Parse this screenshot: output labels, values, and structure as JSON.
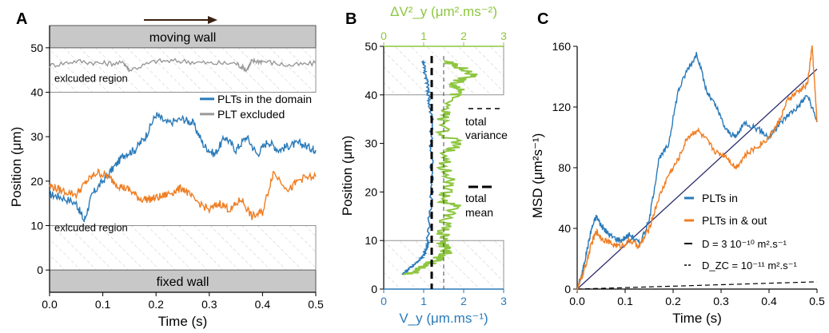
{
  "chart_data": [
    {
      "panel": "A",
      "type": "line",
      "xlabel": "Time (s)",
      "ylabel": "Position (μm)",
      "xlim": [
        0,
        0.5
      ],
      "ylim": [
        -5,
        55
      ],
      "xticks": [
        "0.0",
        "0.1",
        "0.2",
        "0.3",
        "0.4",
        "0.5"
      ],
      "yticks": [
        "0",
        "10",
        "20",
        "30",
        "40",
        "50"
      ],
      "top_band_label": "moving wall",
      "bottom_band_label": "fixed wall",
      "region_labels": [
        "exlcuded region",
        "exlcuded region"
      ],
      "legend_position": "top-right",
      "series": [
        {
          "name": "PLTs in the domain",
          "color": "#2a7ab9",
          "x": [
            0.0,
            0.02,
            0.05,
            0.065,
            0.08,
            0.1,
            0.12,
            0.14,
            0.16,
            0.18,
            0.2,
            0.22,
            0.25,
            0.27,
            0.29,
            0.31,
            0.33,
            0.35,
            0.37,
            0.39,
            0.41,
            0.43,
            0.45,
            0.47,
            0.49,
            0.5
          ],
          "y": [
            17,
            16.5,
            15,
            11,
            17,
            20,
            23,
            26,
            27,
            30,
            35,
            33,
            34,
            33,
            28,
            26,
            30,
            27,
            30,
            26,
            29,
            27,
            28,
            28.5,
            27.5,
            27
          ]
        },
        {
          "name": "PLT excluded",
          "color": "#999999",
          "x": [
            0.0,
            0.05,
            0.1,
            0.14,
            0.15,
            0.2,
            0.25,
            0.3,
            0.35,
            0.37,
            0.38,
            0.4,
            0.45,
            0.5
          ],
          "y": [
            46,
            47,
            46.5,
            46.5,
            45,
            47,
            47,
            46.5,
            46.5,
            45,
            47,
            47,
            46,
            46.5
          ]
        },
        {
          "name": "",
          "color": "#ef7d22",
          "x": [
            0.0,
            0.02,
            0.05,
            0.07,
            0.09,
            0.11,
            0.13,
            0.15,
            0.17,
            0.19,
            0.21,
            0.23,
            0.25,
            0.27,
            0.3,
            0.32,
            0.34,
            0.36,
            0.38,
            0.4,
            0.42,
            0.45,
            0.47,
            0.5
          ],
          "y": [
            19,
            18,
            17,
            20,
            22,
            21,
            19,
            18,
            16,
            16,
            16.5,
            17.5,
            18.5,
            16,
            13.5,
            15,
            13.5,
            16,
            12,
            13,
            22,
            18,
            20.5,
            21
          ]
        }
      ]
    },
    {
      "panel": "B",
      "type": "line",
      "xlabel_bottom": "V_y (μm.ms⁻¹)",
      "xlabel_top": "ΔV²_y (μm².ms⁻²)",
      "ylabel": "Position (μm)",
      "xlim_bottom": [
        0,
        3
      ],
      "xlim_top": [
        0,
        3
      ],
      "ylim": [
        0,
        50
      ],
      "xticks_bottom": [
        "0",
        "1",
        "2",
        "3"
      ],
      "xticks_top": [
        "0",
        "1",
        "2",
        "3"
      ],
      "yticks": [
        "0",
        "10",
        "20",
        "30",
        "40",
        "50"
      ],
      "annotations": [
        "total variance",
        "total mean"
      ],
      "total_mean": 1.2,
      "total_variance": 1.5,
      "series": [
        {
          "name": "V_y",
          "color": "#2a7ab9",
          "y": [
            3,
            4,
            5,
            6,
            7,
            8,
            9,
            10,
            12,
            15,
            20,
            25,
            30,
            35,
            38,
            40,
            42,
            44,
            46,
            47
          ],
          "x": [
            0.5,
            0.6,
            0.75,
            0.9,
            1.0,
            1.05,
            1.1,
            1.1,
            1.12,
            1.15,
            1.2,
            1.2,
            1.18,
            1.2,
            1.15,
            1.12,
            1.1,
            1.05,
            1.0,
            1.0
          ]
        },
        {
          "name": "ΔV²_y",
          "color": "#8dc63f",
          "y": [
            3,
            4,
            5,
            6,
            7,
            8,
            9,
            10,
            12,
            15,
            17,
            18,
            20,
            22,
            25,
            28,
            30,
            32,
            35,
            37,
            40,
            41,
            42,
            43,
            44,
            45,
            46,
            47
          ],
          "x": [
            0.6,
            0.9,
            1.1,
            1.3,
            1.5,
            1.6,
            1.5,
            1.45,
            1.5,
            1.55,
            1.9,
            1.5,
            1.55,
            1.7,
            1.5,
            1.55,
            1.9,
            1.45,
            1.5,
            1.5,
            1.8,
            2.0,
            1.7,
            1.9,
            2.2,
            2.1,
            1.8,
            1.5
          ]
        }
      ]
    },
    {
      "panel": "C",
      "type": "line",
      "xlabel": "Time (s)",
      "ylabel": "MSD (μm²s⁻¹)",
      "xlim": [
        0,
        0.5
      ],
      "ylim": [
        0,
        160
      ],
      "xticks": [
        "0.0",
        "0.1",
        "0.2",
        "0.3",
        "0.4",
        "0.5"
      ],
      "yticks": [
        "0",
        "40",
        "80",
        "120",
        "160"
      ],
      "legend_position": "bottom-right",
      "series": [
        {
          "name": "PLTs in",
          "color": "#2a7ab9",
          "x": [
            0.0,
            0.01,
            0.02,
            0.03,
            0.04,
            0.05,
            0.06,
            0.07,
            0.09,
            0.11,
            0.13,
            0.15,
            0.17,
            0.19,
            0.21,
            0.23,
            0.25,
            0.27,
            0.29,
            0.31,
            0.33,
            0.35,
            0.38,
            0.4,
            0.42,
            0.44,
            0.46,
            0.48,
            0.5
          ],
          "y": [
            0,
            10,
            25,
            40,
            48,
            42,
            38,
            35,
            32,
            36,
            30,
            45,
            85,
            95,
            130,
            145,
            155,
            130,
            120,
            105,
            100,
            110,
            105,
            100,
            108,
            115,
            120,
            128,
            110
          ]
        },
        {
          "name": "PLTs in & out",
          "color": "#ef7d22",
          "x": [
            0.0,
            0.01,
            0.02,
            0.03,
            0.04,
            0.05,
            0.07,
            0.09,
            0.11,
            0.13,
            0.15,
            0.17,
            0.19,
            0.21,
            0.23,
            0.25,
            0.27,
            0.29,
            0.31,
            0.33,
            0.35,
            0.38,
            0.4,
            0.42,
            0.44,
            0.46,
            0.48,
            0.49,
            0.5
          ],
          "y": [
            0,
            8,
            18,
            30,
            38,
            34,
            30,
            28,
            32,
            28,
            40,
            60,
            75,
            85,
            100,
            105,
            98,
            90,
            88,
            80,
            88,
            95,
            100,
            110,
            125,
            130,
            135,
            160,
            110
          ]
        },
        {
          "name": "D = 3 10⁻¹⁰ m².s⁻¹",
          "color": "#2b2b6b",
          "style": "solid",
          "x": [
            0.0,
            0.5
          ],
          "y": [
            0,
            145
          ]
        },
        {
          "name": "D_ZC = 10⁻¹¹ m².s⁻¹",
          "color": "#000000",
          "style": "dashed",
          "x": [
            0.0,
            0.5
          ],
          "y": [
            0,
            4.8
          ]
        }
      ]
    }
  ],
  "labels": {
    "panelA": "A",
    "panelB": "B",
    "panelC": "C"
  }
}
